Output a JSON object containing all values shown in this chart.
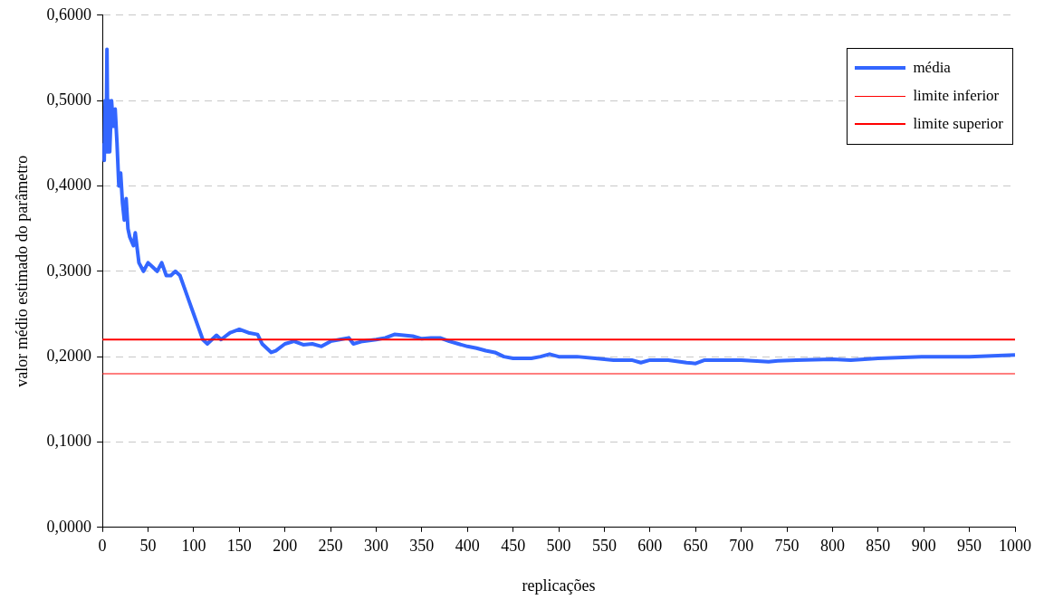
{
  "chart_data": {
    "type": "line",
    "xlabel": "replicações",
    "ylabel": "valor médio estimado do parâmetro",
    "xlim": [
      0,
      1000
    ],
    "xticks": [
      0,
      50,
      100,
      150,
      200,
      250,
      300,
      350,
      400,
      450,
      500,
      550,
      600,
      650,
      700,
      750,
      800,
      850,
      900,
      950,
      1000
    ],
    "ylim": [
      0,
      0.6
    ],
    "yticks": [
      {
        "value": 0,
        "label": "0,0000"
      },
      {
        "value": 0.1,
        "label": "0,1000"
      },
      {
        "value": 0.2,
        "label": "0,2000"
      },
      {
        "value": 0.3,
        "label": "0,3000"
      },
      {
        "value": 0.4,
        "label": "0,4000"
      },
      {
        "value": 0.5,
        "label": "0,5000"
      },
      {
        "value": 0.6,
        "label": "0,6000"
      }
    ],
    "grid": "y",
    "legend": "top right",
    "marker": "none",
    "series": [
      {
        "name": "média",
        "color": "#3366ff",
        "x": [
          1,
          2,
          3,
          4,
          5,
          6,
          7,
          8,
          10,
          12,
          14,
          16,
          18,
          20,
          22,
          24,
          26,
          28,
          30,
          34,
          36,
          40,
          45,
          50,
          55,
          60,
          65,
          70,
          75,
          80,
          85,
          90,
          95,
          100,
          105,
          110,
          115,
          120,
          125,
          130,
          140,
          150,
          160,
          170,
          175,
          185,
          190,
          200,
          210,
          220,
          230,
          240,
          250,
          260,
          270,
          275,
          285,
          300,
          310,
          320,
          330,
          340,
          350,
          360,
          370,
          380,
          390,
          400,
          410,
          420,
          430,
          440,
          450,
          470,
          480,
          490,
          500,
          520,
          540,
          560,
          580,
          590,
          600,
          620,
          640,
          650,
          660,
          700,
          730,
          740,
          760,
          800,
          820,
          850,
          900,
          950,
          1000
        ],
        "values": [
          0.45,
          0.43,
          0.5,
          0.44,
          0.56,
          0.44,
          0.5,
          0.44,
          0.5,
          0.47,
          0.49,
          0.45,
          0.4,
          0.415,
          0.38,
          0.36,
          0.385,
          0.35,
          0.34,
          0.33,
          0.345,
          0.31,
          0.3,
          0.31,
          0.305,
          0.3,
          0.31,
          0.295,
          0.295,
          0.3,
          0.295,
          0.28,
          0.265,
          0.25,
          0.235,
          0.22,
          0.215,
          0.22,
          0.225,
          0.22,
          0.228,
          0.232,
          0.228,
          0.226,
          0.215,
          0.205,
          0.207,
          0.215,
          0.218,
          0.214,
          0.215,
          0.212,
          0.218,
          0.22,
          0.222,
          0.215,
          0.218,
          0.22,
          0.222,
          0.226,
          0.225,
          0.224,
          0.221,
          0.222,
          0.222,
          0.218,
          0.215,
          0.212,
          0.21,
          0.207,
          0.205,
          0.2,
          0.198,
          0.198,
          0.2,
          0.203,
          0.2,
          0.2,
          0.198,
          0.196,
          0.196,
          0.193,
          0.196,
          0.196,
          0.193,
          0.192,
          0.196,
          0.196,
          0.194,
          0.195,
          0.196,
          0.197,
          0.196,
          0.198,
          0.2,
          0.2,
          0.202
        ]
      },
      {
        "name": "limite inferior",
        "color": "#ff0000",
        "x": [
          0,
          1000
        ],
        "values": [
          0.18,
          0.18
        ]
      },
      {
        "name": "limite superior",
        "color": "#ff0000",
        "x": [
          0,
          1000
        ],
        "values": [
          0.22,
          0.22
        ]
      }
    ]
  }
}
